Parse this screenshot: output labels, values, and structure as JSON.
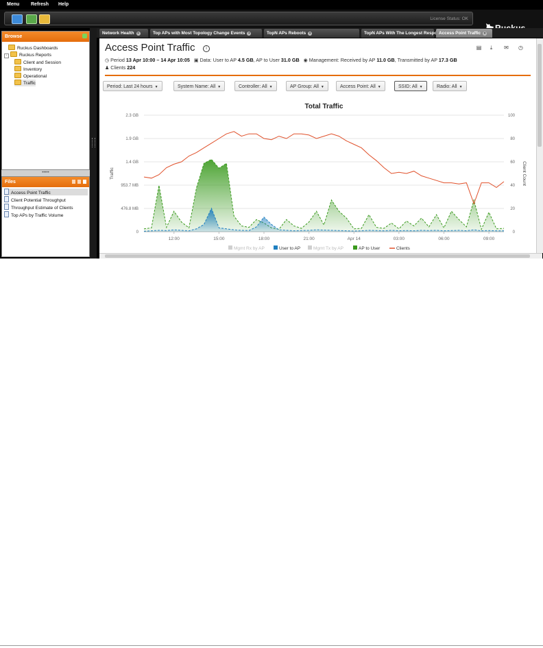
{
  "menu": [
    "Menu",
    "Refresh",
    "Help"
  ],
  "toolbar": {
    "license_status": "License Status: OK"
  },
  "brand": {
    "name": "Ruckus"
  },
  "browse": {
    "title": "Browse",
    "tree": [
      {
        "label": "Ruckus Dashboards",
        "level": 1,
        "toggle": ""
      },
      {
        "label": "Ruckus Reports",
        "level": 0,
        "toggle": "-"
      },
      {
        "label": "Client and Session",
        "level": 2,
        "toggle": ""
      },
      {
        "label": "Inventory",
        "level": 2,
        "toggle": ""
      },
      {
        "label": "Operational",
        "level": 2,
        "toggle": ""
      },
      {
        "label": "Traffic",
        "level": 2,
        "toggle": ""
      }
    ]
  },
  "files": {
    "title": "Files",
    "items": [
      "Access Point Traffic",
      "Client Potential Throughput",
      "Throughput Estimate of Clients",
      "Top APs by Traffic Volume"
    ]
  },
  "tabs": [
    "Network Health",
    "Top APs with Most Topology Change Events",
    "TopN APs Reboots",
    "TopN APs With The Longest Response Time",
    "Access Point Traffic"
  ],
  "report": {
    "title": "Access Point Traffic",
    "period_label": "Period",
    "period_value": "13 Apr 10:00 – 14 Apr 10:05",
    "data_label": "Data: User to AP",
    "data_user_to_ap": "4.5 GB",
    "data_mid": ", AP to User",
    "data_ap_to_user": "31.0 GB",
    "mgmt_label": "Management: Received by AP",
    "mgmt_received": "11.0 GB",
    "mgmt_mid": ", Transmitted by AP",
    "mgmt_transmitted": "17.3 GB",
    "clients_label": "Clients",
    "clients_value": "224"
  },
  "filters": [
    {
      "label": "Period:",
      "value": "Last 24 hours"
    },
    {
      "label": "System Name:",
      "value": "All"
    },
    {
      "label": "Controller:",
      "value": "All"
    },
    {
      "label": "AP Group:",
      "value": "All"
    },
    {
      "label": "Access Point:",
      "value": "All"
    },
    {
      "label": "SSID:",
      "value": "All"
    },
    {
      "label": "Radio:",
      "value": "All"
    }
  ],
  "colors": {
    "accent": "#e56d0c",
    "ap_to_user": "#3a9a1e",
    "user_to_ap": "#1f7fc0",
    "clients": "#e0502a"
  },
  "chart_data": {
    "type": "area",
    "title": "Total Traffic",
    "ylabel": "Traffic",
    "y2label": "Client Count",
    "yticks": [
      "0",
      "476.8 MB",
      "953.7 MB",
      "1.4 GB",
      "1.9 GB",
      "2.3 GB"
    ],
    "ylim_mb": [
      0,
      2384
    ],
    "y2ticks": [
      "0",
      "20",
      "40",
      "60",
      "80",
      "100"
    ],
    "y2lim": [
      0,
      100
    ],
    "xticks": [
      {
        "label": "12:00",
        "t": 2
      },
      {
        "label": "15:00",
        "t": 5
      },
      {
        "label": "18:00",
        "t": 8
      },
      {
        "label": "21:00",
        "t": 11
      },
      {
        "label": "Apr 14",
        "t": 14
      },
      {
        "label": "03:00",
        "t": 17
      },
      {
        "label": "06:00",
        "t": 20
      },
      {
        "label": "09:00",
        "t": 23
      }
    ],
    "x_hours_since_10": [
      0,
      0.5,
      1,
      1.5,
      2,
      2.5,
      3,
      3.5,
      4,
      4.5,
      5,
      5.5,
      6,
      6.5,
      7,
      7.5,
      8,
      8.5,
      9,
      9.5,
      10,
      10.5,
      11,
      11.5,
      12,
      12.5,
      13,
      13.5,
      14,
      14.5,
      15,
      15.5,
      16,
      16.5,
      17,
      17.5,
      18,
      18.5,
      19,
      19.5,
      20,
      20.5,
      21,
      21.5,
      22,
      22.5,
      23,
      23.5,
      24
    ],
    "legend": [
      "Mgmt Rx by AP",
      "User to AP",
      "Mgmt Tx by AP",
      "AP to User",
      "Clients"
    ],
    "series": [
      {
        "name": "AP to User",
        "unit": "MB",
        "values": [
          60,
          80,
          950,
          90,
          420,
          200,
          80,
          900,
          1400,
          1480,
          1300,
          1400,
          320,
          120,
          90,
          250,
          180,
          80,
          50,
          250,
          120,
          70,
          200,
          420,
          140,
          650,
          420,
          280,
          60,
          70,
          350,
          90,
          70,
          180,
          60,
          220,
          120,
          280,
          100,
          350,
          80,
          420,
          250,
          100,
          650,
          50,
          400,
          60,
          70
        ]
      },
      {
        "name": "User to AP",
        "unit": "MB",
        "values": [
          10,
          20,
          30,
          25,
          40,
          30,
          20,
          60,
          150,
          480,
          80,
          60,
          40,
          30,
          25,
          100,
          300,
          150,
          40,
          30,
          20,
          25,
          30,
          40,
          35,
          30,
          25,
          20,
          15,
          20,
          30,
          25,
          20,
          30,
          20,
          25,
          20,
          30,
          25,
          30,
          20,
          25,
          30,
          20,
          40,
          20,
          25,
          20,
          20
        ]
      },
      {
        "name": "Clients",
        "unit": "count",
        "values": [
          47,
          46,
          49,
          55,
          58,
          60,
          65,
          68,
          72,
          76,
          80,
          84,
          86,
          82,
          84,
          84,
          80,
          79,
          82,
          80,
          84,
          84,
          83,
          80,
          82,
          84,
          82,
          78,
          75,
          72,
          66,
          61,
          55,
          50,
          51,
          50,
          52,
          48,
          46,
          44,
          42,
          42,
          41,
          42,
          24,
          42,
          42,
          38,
          43
        ]
      }
    ]
  }
}
